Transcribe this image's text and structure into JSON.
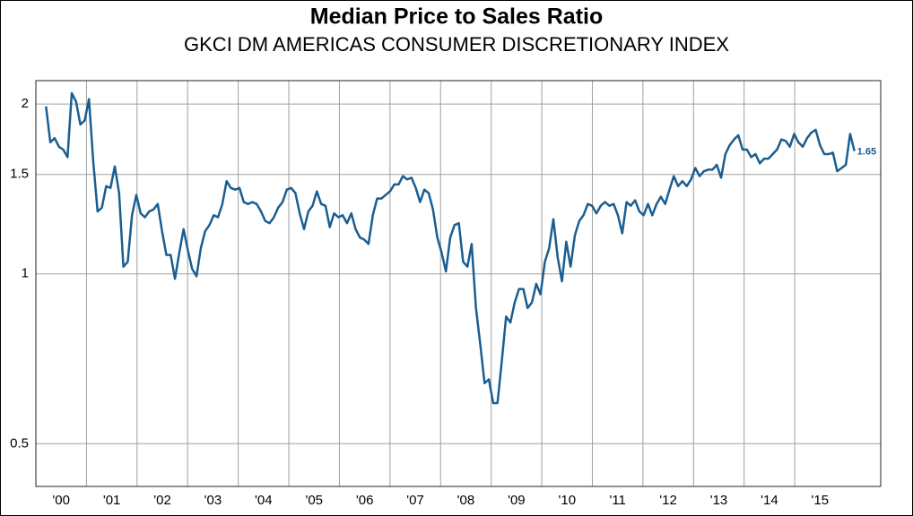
{
  "chart_data": {
    "type": "line",
    "title": "Median Price to Sales Ratio",
    "subtitle": "GKCI DM AMERICAS CONSUMER DISCRETIONARY INDEX",
    "log_scale_y": true,
    "grid": true,
    "xlim": [
      2000,
      2016.7
    ],
    "ylim": [
      0.42,
      2.2
    ],
    "yticks": [
      0.5,
      1,
      1.5,
      2
    ],
    "xticks": [
      {
        "value": 2000,
        "label": "'00"
      },
      {
        "value": 2001,
        "label": "'01"
      },
      {
        "value": 2002,
        "label": "'02"
      },
      {
        "value": 2003,
        "label": "'03"
      },
      {
        "value": 2004,
        "label": "'04"
      },
      {
        "value": 2005,
        "label": "'05"
      },
      {
        "value": 2006,
        "label": "'06"
      },
      {
        "value": 2007,
        "label": "'07"
      },
      {
        "value": 2008,
        "label": "'08"
      },
      {
        "value": 2009,
        "label": "'09"
      },
      {
        "value": 2010,
        "label": "'10"
      },
      {
        "value": 2011,
        "label": "'11"
      },
      {
        "value": 2012,
        "label": "'12"
      },
      {
        "value": 2013,
        "label": "'13"
      },
      {
        "value": 2014,
        "label": "'14"
      },
      {
        "value": 2015,
        "label": "'15"
      }
    ],
    "x": [
      2000.2,
      2000.285,
      2000.37,
      2000.455,
      2000.54,
      2000.625,
      2000.71,
      2000.795,
      2000.88,
      2000.965,
      2001.05,
      2001.135,
      2001.22,
      2001.305,
      2001.39,
      2001.475,
      2001.56,
      2001.645,
      2001.73,
      2001.815,
      2001.9,
      2001.985,
      2002.07,
      2002.155,
      2002.24,
      2002.325,
      2002.41,
      2002.495,
      2002.58,
      2002.665,
      2002.75,
      2002.835,
      2002.92,
      2003.005,
      2003.09,
      2003.175,
      2003.26,
      2003.345,
      2003.43,
      2003.515,
      2003.6,
      2003.685,
      2003.77,
      2003.855,
      2003.94,
      2004.025,
      2004.11,
      2004.195,
      2004.28,
      2004.365,
      2004.45,
      2004.535,
      2004.62,
      2004.705,
      2004.79,
      2004.875,
      2004.96,
      2005.045,
      2005.13,
      2005.215,
      2005.3,
      2005.385,
      2005.47,
      2005.555,
      2005.64,
      2005.725,
      2005.81,
      2005.895,
      2005.98,
      2006.065,
      2006.15,
      2006.235,
      2006.32,
      2006.405,
      2006.49,
      2006.575,
      2006.66,
      2006.745,
      2006.83,
      2006.915,
      2007,
      2007.085,
      2007.17,
      2007.255,
      2007.34,
      2007.425,
      2007.51,
      2007.595,
      2007.68,
      2007.765,
      2007.85,
      2007.935,
      2008.02,
      2008.105,
      2008.19,
      2008.275,
      2008.36,
      2008.445,
      2008.53,
      2008.615,
      2008.7,
      2008.785,
      2008.87,
      2008.955,
      2009.04,
      2009.125,
      2009.21,
      2009.295,
      2009.38,
      2009.465,
      2009.55,
      2009.635,
      2009.72,
      2009.805,
      2009.89,
      2009.975,
      2010.06,
      2010.145,
      2010.23,
      2010.315,
      2010.4,
      2010.485,
      2010.57,
      2010.655,
      2010.74,
      2010.825,
      2010.91,
      2010.995,
      2011.08,
      2011.165,
      2011.25,
      2011.335,
      2011.42,
      2011.505,
      2011.59,
      2011.675,
      2011.76,
      2011.845,
      2011.93,
      2012.015,
      2012.1,
      2012.185,
      2012.27,
      2012.355,
      2012.44,
      2012.525,
      2012.61,
      2012.695,
      2012.78,
      2012.865,
      2012.95,
      2013.035,
      2013.12,
      2013.205,
      2013.29,
      2013.375,
      2013.46,
      2013.545,
      2013.63,
      2013.715,
      2013.8,
      2013.885,
      2013.97,
      2014.055,
      2014.14,
      2014.225,
      2014.31,
      2014.395,
      2014.48,
      2014.565,
      2014.65,
      2014.735,
      2014.82,
      2014.905,
      2014.99,
      2015.075,
      2015.16,
      2015.245,
      2015.33,
      2015.415,
      2015.5,
      2015.585,
      2015.67,
      2015.755,
      2015.84,
      2015.925,
      2016.01,
      2016.095,
      2016.18
    ],
    "series": [
      {
        "color": "#1a5e91",
        "values": [
          1.98,
          1.71,
          1.74,
          1.68,
          1.66,
          1.61,
          2.09,
          2.02,
          1.84,
          1.87,
          2.04,
          1.58,
          1.29,
          1.31,
          1.43,
          1.42,
          1.55,
          1.39,
          1.03,
          1.05,
          1.27,
          1.38,
          1.28,
          1.26,
          1.29,
          1.3,
          1.33,
          1.19,
          1.08,
          1.08,
          0.98,
          1.09,
          1.2,
          1.1,
          1.02,
          0.99,
          1.11,
          1.19,
          1.22,
          1.27,
          1.26,
          1.33,
          1.46,
          1.42,
          1.41,
          1.42,
          1.34,
          1.33,
          1.34,
          1.33,
          1.29,
          1.24,
          1.23,
          1.26,
          1.31,
          1.34,
          1.41,
          1.42,
          1.39,
          1.28,
          1.2,
          1.29,
          1.32,
          1.4,
          1.33,
          1.32,
          1.21,
          1.28,
          1.26,
          1.27,
          1.23,
          1.28,
          1.2,
          1.16,
          1.15,
          1.13,
          1.27,
          1.36,
          1.36,
          1.38,
          1.4,
          1.44,
          1.44,
          1.49,
          1.47,
          1.48,
          1.42,
          1.34,
          1.41,
          1.39,
          1.3,
          1.16,
          1.09,
          1.01,
          1.16,
          1.22,
          1.23,
          1.05,
          1.03,
          1.13,
          0.87,
          0.75,
          0.64,
          0.65,
          0.59,
          0.59,
          0.7,
          0.84,
          0.82,
          0.89,
          0.94,
          0.94,
          0.87,
          0.89,
          0.96,
          0.92,
          1.05,
          1.11,
          1.25,
          1.07,
          0.97,
          1.14,
          1.03,
          1.17,
          1.24,
          1.27,
          1.33,
          1.32,
          1.28,
          1.32,
          1.34,
          1.32,
          1.33,
          1.27,
          1.18,
          1.34,
          1.32,
          1.35,
          1.29,
          1.27,
          1.33,
          1.27,
          1.33,
          1.37,
          1.33,
          1.41,
          1.49,
          1.43,
          1.46,
          1.43,
          1.47,
          1.54,
          1.49,
          1.52,
          1.53,
          1.53,
          1.56,
          1.48,
          1.63,
          1.69,
          1.73,
          1.76,
          1.66,
          1.66,
          1.61,
          1.63,
          1.57,
          1.6,
          1.6,
          1.63,
          1.66,
          1.73,
          1.72,
          1.68,
          1.77,
          1.71,
          1.68,
          1.74,
          1.78,
          1.8,
          1.69,
          1.63,
          1.63,
          1.64,
          1.52,
          1.54,
          1.56,
          1.77,
          1.65
        ]
      }
    ],
    "last_value_label": 1.65
  }
}
